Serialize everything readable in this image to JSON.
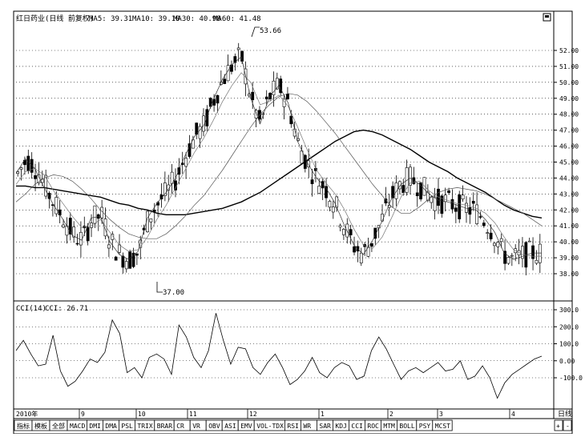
{
  "header": {
    "title": "红日药业(日线 前复权)",
    "ma5": "MA5: 39.31",
    "ma10": "MA10: 39.10",
    "ma30": "MA30: 40.98",
    "ma60": "MA60: 41.48"
  },
  "indicator_header": {
    "name": "CCI(14)",
    "value": "CCI: 26.71"
  },
  "time_labels": [
    "2010年",
    "9",
    "10",
    "11",
    "12",
    "1",
    "2",
    "3",
    "4"
  ],
  "period_label": "日线",
  "nav_buttons": [
    "+",
    "-"
  ],
  "tabs": [
    "指标",
    "模板",
    "全部",
    "MACD",
    "DMI",
    "DMA",
    "PSL",
    "TRIX",
    "BRAR",
    "CR",
    "VR",
    "OBV",
    "ASI",
    "EMV",
    "VOL-TDX",
    "RSI",
    "WR",
    "SAR",
    "KDJ",
    "CCI",
    "ROC",
    "MTM",
    "BOLL",
    "PSY",
    "MCST"
  ],
  "active_tab": "CCI",
  "colors": {
    "active_tab": "#cc0000",
    "line": "#000000"
  },
  "chart_data": [
    {
      "type": "candlestick",
      "title": "红日药业(日线 前复权)",
      "ylim": [
        37,
        53
      ],
      "y_ticks": [
        "52.00",
        "51.00",
        "50.00",
        "49.00",
        "48.00",
        "47.00",
        "46.00",
        "45.00",
        "44.00",
        "43.00",
        "42.00",
        "41.00",
        "40.00",
        "39.00",
        "38.00"
      ],
      "annotations": [
        {
          "label": "53.66",
          "value": 53.66,
          "type": "high"
        },
        {
          "label": "37.00",
          "value": 37.0,
          "type": "low"
        }
      ],
      "series": [
        {
          "name": "MA60",
          "values": [
            43.5,
            43.5,
            43.4,
            43.4,
            43.3,
            43.2,
            43.1,
            43.0,
            42.9,
            42.8,
            42.6,
            42.4,
            42.3,
            42.1,
            42.0,
            41.8,
            41.7,
            41.7,
            41.7,
            41.8,
            41.9,
            42.0,
            42.1,
            42.3,
            42.5,
            42.8,
            43.1,
            43.5,
            43.9,
            44.3,
            44.7,
            45.1,
            45.5,
            45.9,
            46.3,
            46.6,
            46.9,
            47.0,
            46.9,
            46.7,
            46.4,
            46.1,
            45.8,
            45.4,
            45.0,
            44.7,
            44.4,
            44.0,
            43.7,
            43.4,
            43.1,
            42.7,
            42.3,
            42.0,
            41.8,
            41.6,
            41.5
          ]
        },
        {
          "name": "MA30",
          "values": [
            42.5,
            43.0,
            43.6,
            44.0,
            44.2,
            44.1,
            43.8,
            43.3,
            42.7,
            42.0,
            41.4,
            40.9,
            40.5,
            40.3,
            40.2,
            40.2,
            40.5,
            41.0,
            41.6,
            42.3,
            42.9,
            43.7,
            44.5,
            45.4,
            46.3,
            47.2,
            48.0,
            48.6,
            49.1,
            49.3,
            49.2,
            48.8,
            48.2,
            47.5,
            46.8,
            46.0,
            45.2,
            44.4,
            43.6,
            42.9,
            42.2,
            41.8,
            41.8,
            42.2,
            42.7,
            43.1,
            43.3,
            43.4,
            43.3,
            43.2,
            43.0,
            42.7,
            42.4,
            42.1,
            41.8,
            41.4,
            41.0
          ]
        },
        {
          "name": "MA10",
          "values": [
            43.6,
            44.4,
            44.6,
            44.2,
            43.2,
            42.4,
            41.6,
            40.9,
            41.0,
            41.4,
            40.6,
            39.8,
            39.4,
            39.5,
            40.3,
            41.4,
            42.3,
            43.4,
            44.5,
            45.6,
            46.5,
            47.6,
            48.8,
            49.8,
            50.6,
            50.0,
            48.6,
            48.8,
            49.2,
            48.5,
            47.2,
            45.8,
            44.5,
            43.7,
            43.0,
            42.0,
            40.8,
            39.8,
            39.6,
            40.3,
            41.5,
            42.8,
            43.7,
            43.8,
            43.2,
            42.8,
            42.6,
            42.4,
            42.3,
            42.1,
            41.8,
            41.2,
            40.3,
            39.5,
            39.2,
            39.1,
            39.1
          ]
        },
        {
          "name": "MA5",
          "values": [
            44.3,
            45.2,
            44.6,
            43.4,
            42.3,
            41.4,
            40.4,
            40.1,
            41.5,
            41.6,
            40.0,
            39.2,
            38.9,
            39.4,
            41.5,
            42.4,
            43.1,
            44.0,
            45.4,
            46.6,
            47.3,
            48.9,
            50.2,
            51.1,
            51.6,
            49.0,
            47.4,
            49.1,
            49.8,
            48.7,
            46.3,
            45.0,
            44.0,
            43.4,
            42.4,
            41.0,
            39.8,
            39.2,
            40.1,
            41.3,
            42.7,
            43.6,
            44.0,
            43.6,
            43.0,
            42.6,
            42.5,
            42.3,
            42.1,
            42.0,
            41.4,
            40.6,
            39.3,
            38.9,
            39.1,
            39.3,
            39.3
          ]
        }
      ]
    },
    {
      "type": "line",
      "title": "CCI(14)",
      "ylim": [
        -200,
        350
      ],
      "y_ticks": [
        "300.0",
        "200.0",
        "100.0",
        "0.00",
        "-100.0"
      ],
      "series": [
        {
          "name": "CCI",
          "values": [
            60,
            120,
            40,
            -30,
            -20,
            150,
            -60,
            -150,
            -120,
            -60,
            10,
            -10,
            50,
            240,
            160,
            -70,
            -40,
            -100,
            20,
            40,
            10,
            -80,
            210,
            140,
            20,
            -40,
            60,
            280,
            120,
            -20,
            80,
            70,
            -40,
            -80,
            -10,
            40,
            -40,
            -140,
            -110,
            -60,
            20,
            -70,
            -100,
            -40,
            -10,
            -30,
            -110,
            -90,
            60,
            140,
            70,
            -20,
            -110,
            -60,
            -40,
            -70,
            -40,
            -10,
            -60,
            -50,
            0,
            -110,
            -90,
            -30,
            -100,
            -220,
            -130,
            -80,
            -50,
            -20,
            10,
            27
          ]
        }
      ]
    }
  ]
}
